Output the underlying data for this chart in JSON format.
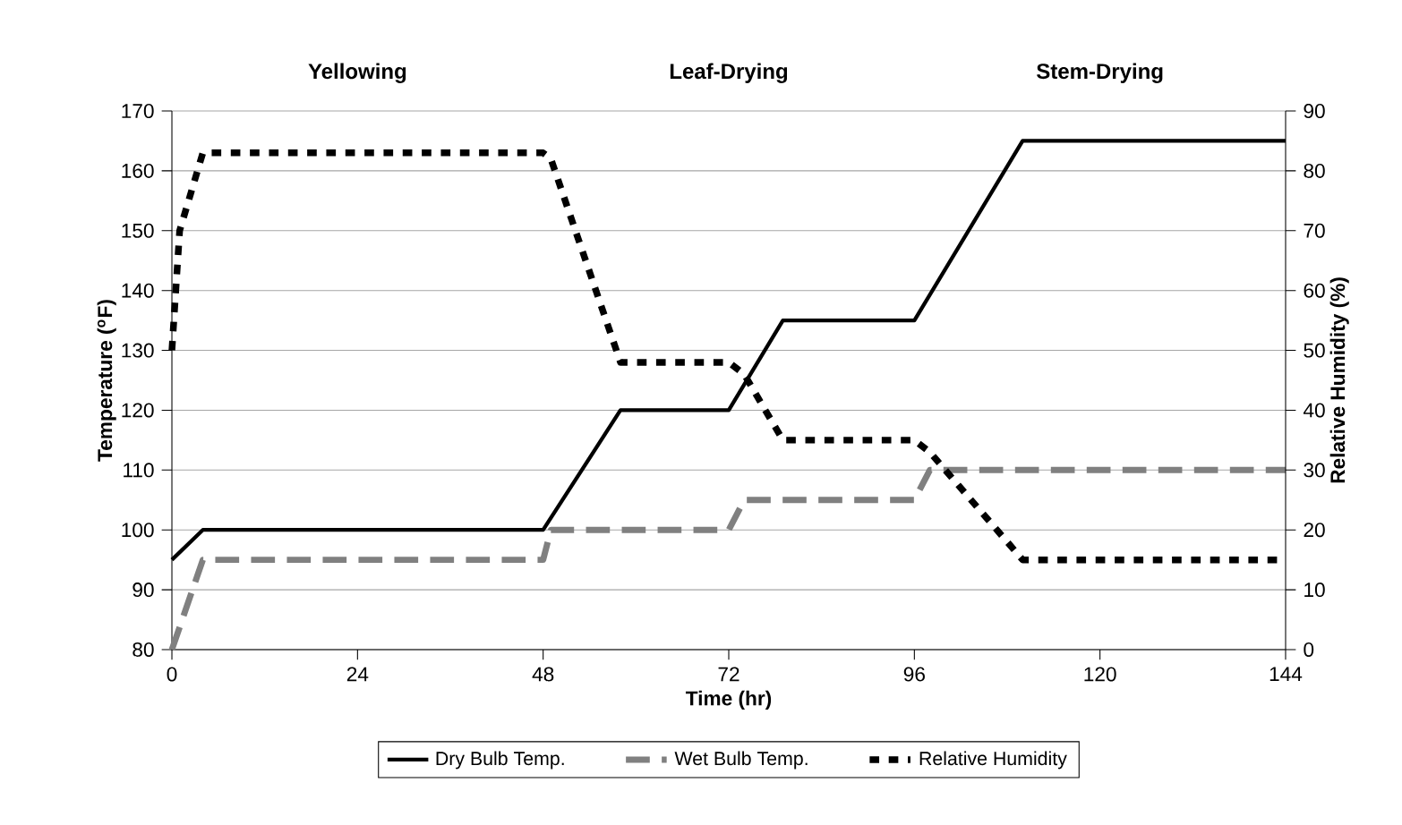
{
  "chart_data": {
    "type": "line",
    "xlabel": "Time (hr)",
    "ylabel": "Temperature ($^{o}$F)",
    "y2label": "Relative Humidity (%)",
    "annotations": [
      "Yellowing",
      "Leaf-Drying",
      "Stem-Drying"
    ],
    "xlim": [
      0,
      144
    ],
    "xticks": [
      0,
      24,
      48,
      72,
      96,
      120,
      144
    ],
    "ylim": [
      80,
      170
    ],
    "yticks": [
      80,
      90,
      100,
      110,
      120,
      130,
      140,
      150,
      160,
      170
    ],
    "y2lim": [
      0,
      90
    ],
    "y2ticks": [
      0,
      10,
      20,
      30,
      40,
      50,
      60,
      70,
      80,
      90
    ],
    "grid": "y",
    "legend": "bottom",
    "series": [
      {
        "name": "Dry Bulb Temp.",
        "color": "#000000",
        "line_style": "solid",
        "x": [
          0,
          4,
          48,
          58,
          72,
          79,
          96,
          110,
          144
        ],
        "values": [
          95,
          100,
          100,
          120,
          120,
          135,
          135,
          165,
          165
        ]
      },
      {
        "name": "Wet Bulb Temp.",
        "color": "#808080",
        "line_style": "dashed",
        "x": [
          0,
          4,
          48,
          49,
          72,
          74,
          96,
          98,
          144
        ],
        "values": [
          80,
          95,
          95,
          100,
          100,
          105,
          105,
          110,
          110
        ]
      },
      {
        "name": "Relative Humidity",
        "color": "#000000",
        "line_style": "dotted",
        "axis": "y2",
        "x": [
          0,
          1,
          4,
          48,
          49,
          58,
          72,
          74,
          79,
          96,
          98,
          110,
          144
        ],
        "values": [
          50,
          70,
          83,
          83,
          82,
          48,
          48,
          46,
          35,
          35,
          33,
          15,
          15
        ]
      }
    ]
  }
}
